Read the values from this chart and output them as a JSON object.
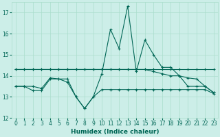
{
  "xlabel": "Humidex (Indice chaleur)",
  "x": [
    0,
    1,
    2,
    3,
    4,
    5,
    6,
    7,
    8,
    9,
    10,
    11,
    12,
    13,
    14,
    15,
    16,
    17,
    18,
    19,
    20,
    21,
    22,
    23
  ],
  "line_spiky": [
    13.5,
    13.5,
    13.5,
    13.4,
    13.9,
    13.85,
    13.7,
    13.0,
    12.45,
    13.0,
    14.1,
    16.2,
    15.3,
    17.3,
    14.2,
    15.7,
    15.0,
    14.4,
    14.4,
    14.0,
    13.5,
    13.5,
    13.5,
    13.2
  ],
  "line_flat_high": [
    14.3,
    14.3,
    14.3,
    14.3,
    14.3,
    14.3,
    14.3,
    14.3,
    14.3,
    14.3,
    14.3,
    14.3,
    14.3,
    14.3,
    14.3,
    14.3,
    14.3,
    14.3,
    14.3,
    14.3,
    14.3,
    14.3,
    14.3,
    14.3
  ],
  "line_trend_down": [
    14.3,
    14.3,
    14.3,
    14.3,
    14.3,
    14.3,
    14.3,
    14.3,
    14.3,
    14.3,
    14.3,
    14.3,
    14.3,
    14.3,
    14.3,
    14.3,
    14.2,
    14.1,
    14.0,
    14.0,
    13.9,
    13.85,
    13.5,
    13.2
  ],
  "line_low_dip": [
    13.5,
    13.5,
    13.3,
    13.3,
    13.85,
    13.85,
    13.85,
    13.0,
    12.45,
    13.0,
    13.35,
    13.35,
    13.35,
    13.35,
    13.35,
    13.35,
    13.35,
    13.35,
    13.35,
    13.35,
    13.35,
    13.35,
    13.35,
    13.15
  ],
  "bg_color": "#cceee8",
  "grid_color": "#aaddcc",
  "line_color": "#006655",
  "ylim": [
    12,
    17.5
  ],
  "yticks": [
    12,
    13,
    14,
    15,
    16,
    17
  ],
  "xlim": [
    -0.5,
    23.5
  ],
  "xticks": [
    0,
    1,
    2,
    3,
    4,
    5,
    6,
    7,
    8,
    9,
    10,
    11,
    12,
    13,
    14,
    15,
    16,
    17,
    18,
    19,
    20,
    21,
    22,
    23
  ]
}
